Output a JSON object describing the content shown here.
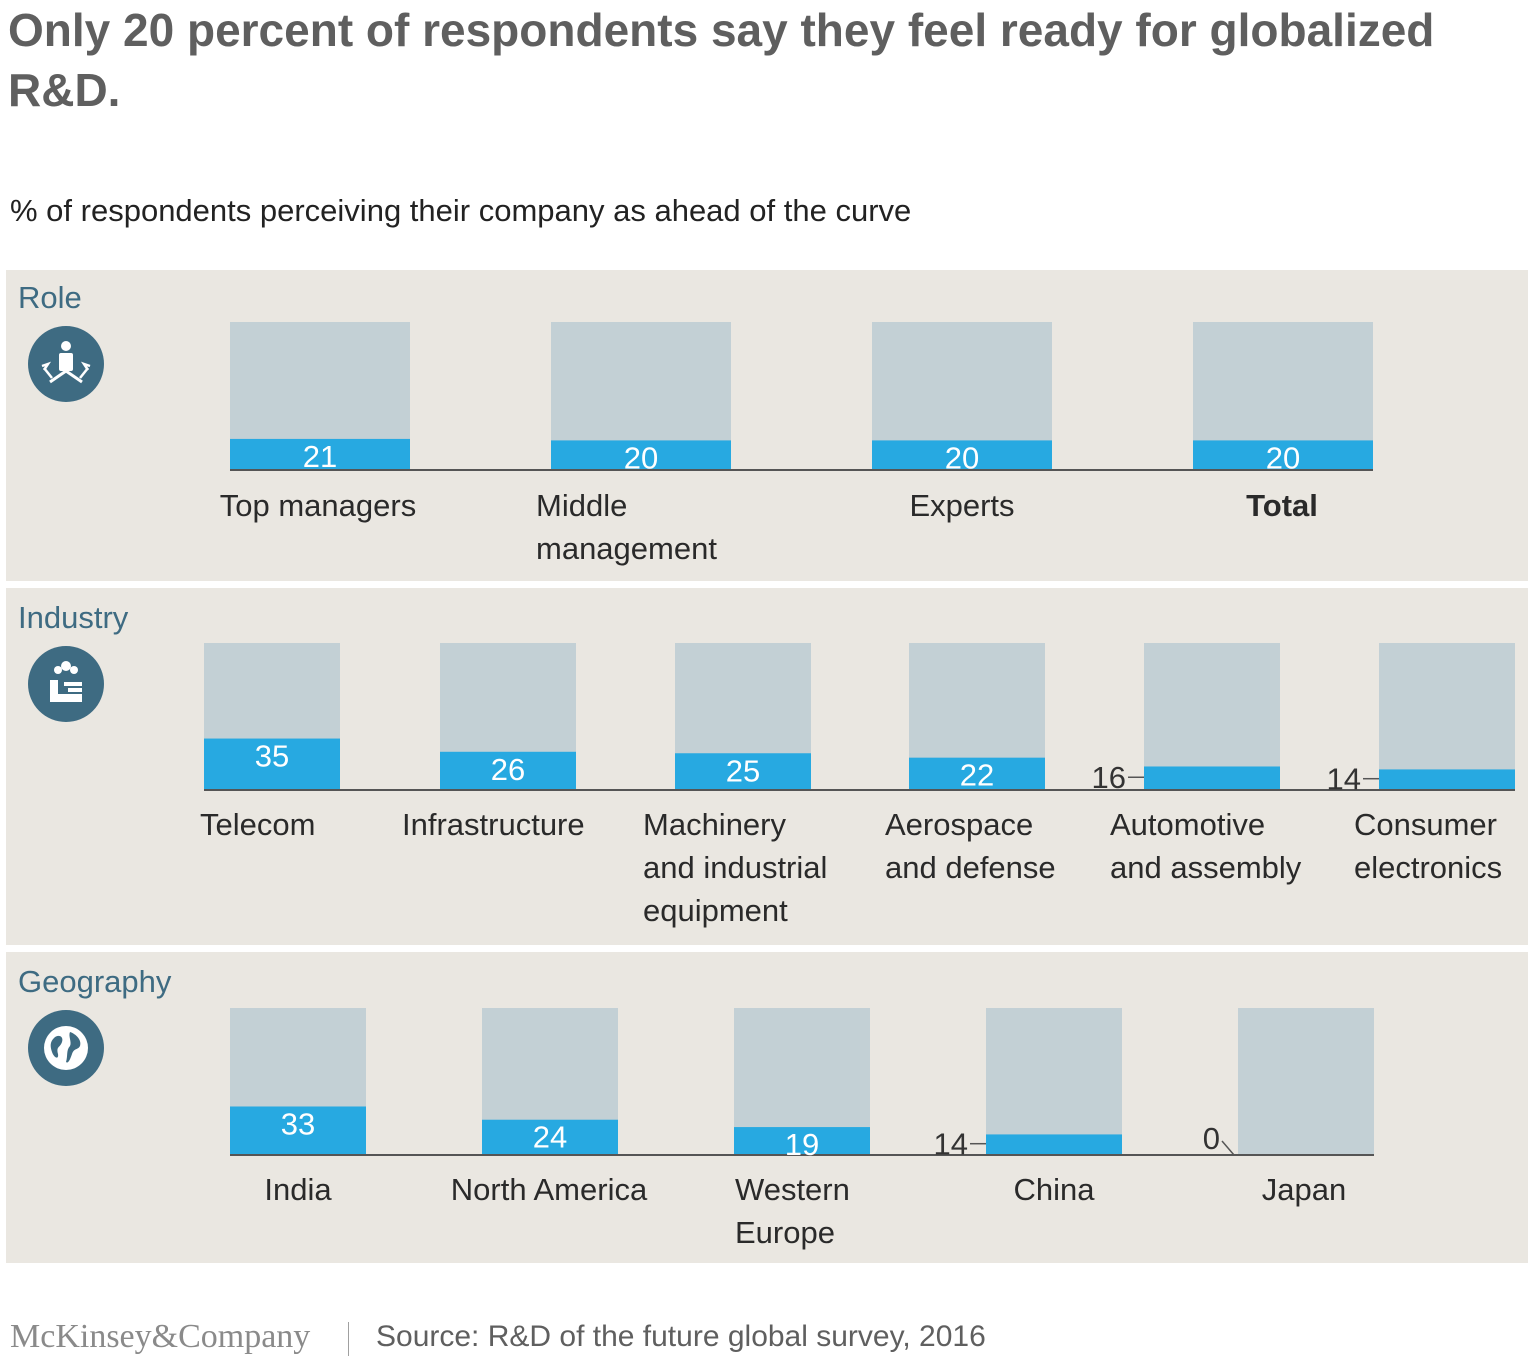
{
  "title": "Only 20 percent of respondents say they feel ready for globalized R&D.",
  "subtitle": "% of respondents perceiving their company as ahead of the curve",
  "colors": {
    "bar_track": "#c3d0d5",
    "bar_fill": "#27a9e1",
    "panel_bg": "#eae7e1",
    "panel_label": "#3e6b82",
    "baseline": "#555555"
  },
  "panels": {
    "role": {
      "label": "Role",
      "icon": "person-arrows-icon"
    },
    "industry": {
      "label": "Industry",
      "icon": "factory-icon"
    },
    "geography": {
      "label": "Geography",
      "icon": "globe-icon"
    }
  },
  "chart_data": [
    {
      "type": "bar",
      "title": "Role",
      "categories": [
        "Top managers",
        "Middle management",
        "Experts",
        "Total"
      ],
      "values": [
        21,
        20,
        20,
        20
      ],
      "ylim": [
        0,
        100
      ],
      "highlight": "Total"
    },
    {
      "type": "bar",
      "title": "Industry",
      "categories": [
        "Telecom",
        "Infrastructure",
        "Machinery and industrial equipment",
        "Aerospace and defense",
        "Automotive and assembly",
        "Consumer electronics"
      ],
      "values": [
        35,
        26,
        25,
        22,
        16,
        14
      ],
      "ylim": [
        0,
        100
      ]
    },
    {
      "type": "bar",
      "title": "Geography",
      "categories": [
        "India",
        "North America",
        "Western Europe",
        "China",
        "Japan"
      ],
      "values": [
        33,
        24,
        19,
        14,
        0
      ],
      "ylim": [
        0,
        100
      ]
    }
  ],
  "footer": {
    "logo": "McKinsey&Company",
    "source": "Source: R&D of the future global survey, 2016"
  }
}
